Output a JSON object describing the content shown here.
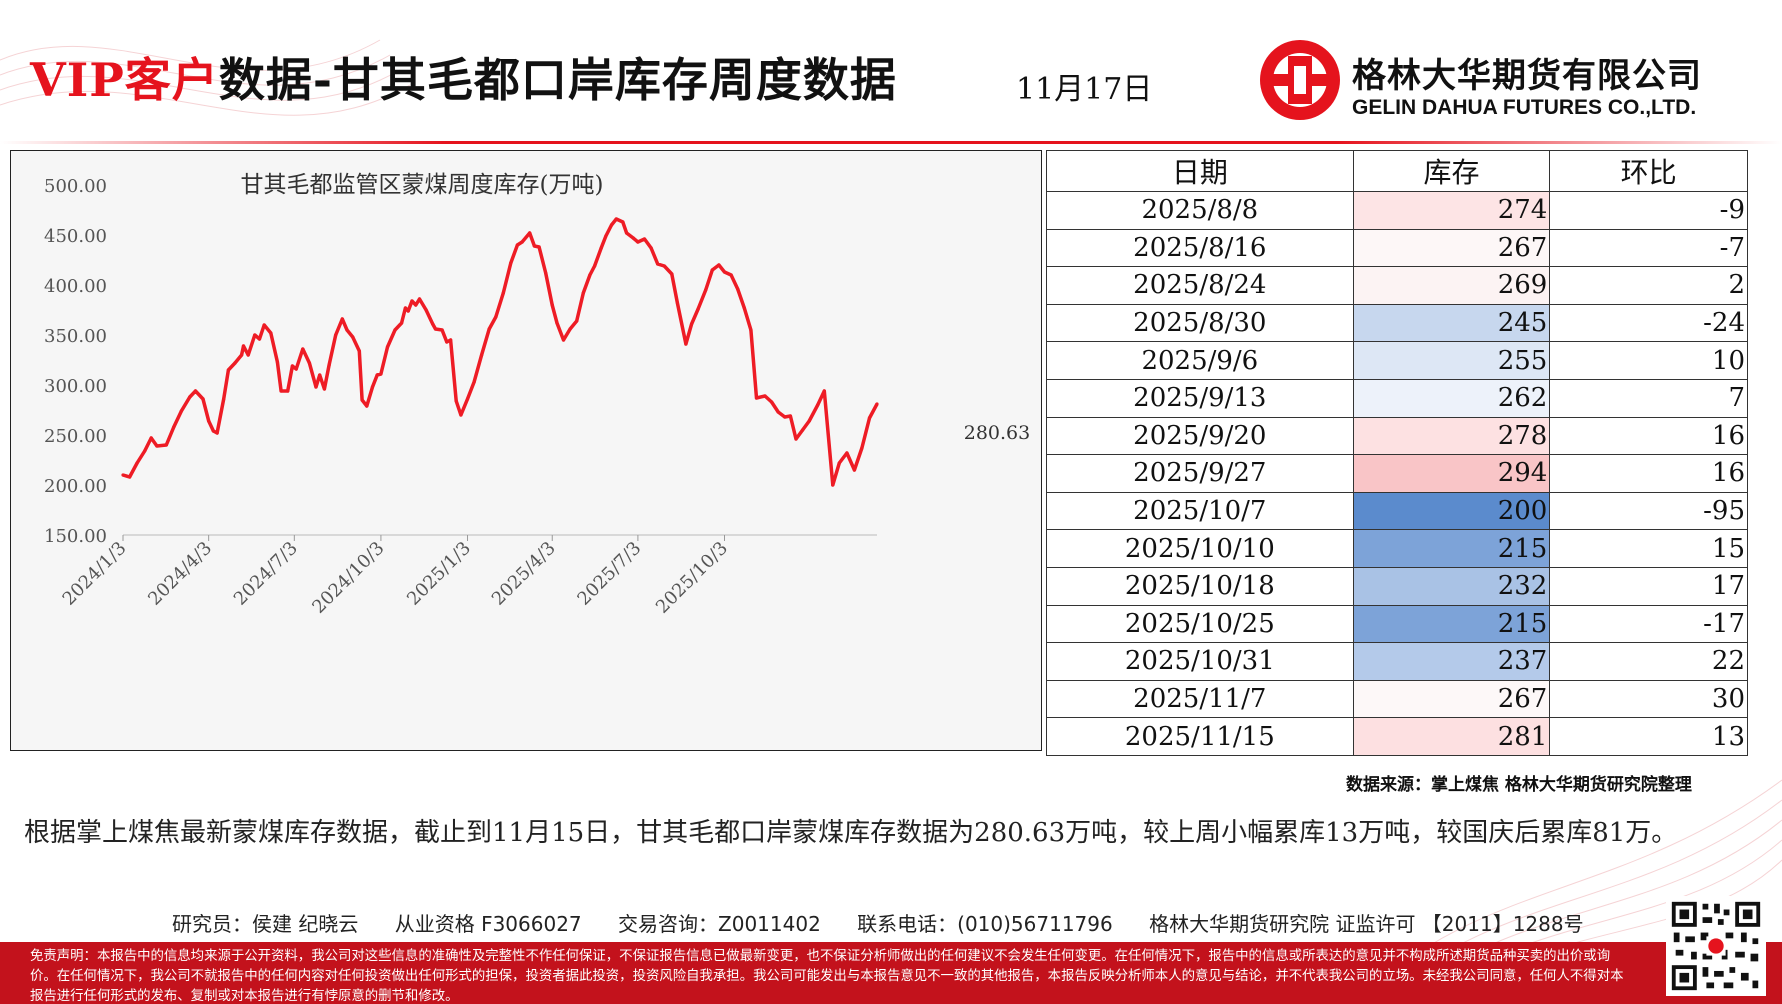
{
  "header": {
    "title_vip": "VIP客户",
    "title_main": "数据-甘其毛都口岸库存周度数据",
    "date": "11月17日",
    "company_cn": "格林大华期货有限公司",
    "company_en": "GELIN DAHUA FUTURES CO.,LTD."
  },
  "colors": {
    "brand_red": "#e5131d",
    "line_red": "#ee1c25",
    "footer_red": "#c3121c"
  },
  "chart_data": {
    "type": "line",
    "title": "甘其毛都监管区蒙煤周度库存(万吨)",
    "ylim": [
      150,
      500
    ],
    "yticks": [
      "150.00",
      "200.00",
      "250.00",
      "300.00",
      "350.00",
      "400.00",
      "450.00",
      "500.00"
    ],
    "xticks": [
      "2024/1/3",
      "2024/4/3",
      "2024/7/3",
      "2024/10/3",
      "2025/1/3",
      "2025/4/3",
      "2025/7/3",
      "2025/10/3"
    ],
    "last_label": "280.63",
    "grid": false,
    "series": [
      {
        "points": [
          [
            "2024-01-03",
            210
          ],
          [
            "2024-01-10",
            208
          ],
          [
            "2024-01-18",
            222
          ],
          [
            "2024-01-26",
            234
          ],
          [
            "2024-02-02",
            247
          ],
          [
            "2024-02-08",
            239
          ],
          [
            "2024-02-18",
            240
          ],
          [
            "2024-02-26",
            258
          ],
          [
            "2024-03-05",
            274
          ],
          [
            "2024-03-14",
            288
          ],
          [
            "2024-03-20",
            294
          ],
          [
            "2024-03-28",
            286
          ],
          [
            "2024-04-03",
            264
          ],
          [
            "2024-04-08",
            254
          ],
          [
            "2024-04-12",
            252
          ],
          [
            "2024-04-19",
            286
          ],
          [
            "2024-04-24",
            315
          ],
          [
            "2024-05-01",
            322
          ],
          [
            "2024-05-08",
            330
          ],
          [
            "2024-05-10",
            339
          ],
          [
            "2024-05-15",
            330
          ],
          [
            "2024-05-22",
            350
          ],
          [
            "2024-05-27",
            346
          ],
          [
            "2024-06-01",
            360
          ],
          [
            "2024-06-08",
            352
          ],
          [
            "2024-06-15",
            323
          ],
          [
            "2024-06-19",
            294
          ],
          [
            "2024-06-26",
            294
          ],
          [
            "2024-07-01",
            319
          ],
          [
            "2024-07-05",
            316
          ],
          [
            "2024-07-12",
            336
          ],
          [
            "2024-07-19",
            322
          ],
          [
            "2024-07-26",
            298
          ],
          [
            "2024-07-30",
            310
          ],
          [
            "2024-08-04",
            296
          ],
          [
            "2024-08-09",
            320
          ],
          [
            "2024-08-16",
            350
          ],
          [
            "2024-08-23",
            366
          ],
          [
            "2024-08-28",
            355
          ],
          [
            "2024-09-03",
            348
          ],
          [
            "2024-09-10",
            334
          ],
          [
            "2024-09-13",
            285
          ],
          [
            "2024-09-18",
            279
          ],
          [
            "2024-09-24",
            298
          ],
          [
            "2024-09-29",
            310
          ],
          [
            "2024-10-03",
            311
          ],
          [
            "2024-10-10",
            338
          ],
          [
            "2024-10-18",
            355
          ],
          [
            "2024-10-25",
            362
          ],
          [
            "2024-10-29",
            377
          ],
          [
            "2024-11-01",
            374
          ],
          [
            "2024-11-05",
            384
          ],
          [
            "2024-11-09",
            380
          ],
          [
            "2024-11-13",
            386
          ],
          [
            "2024-11-20",
            375
          ],
          [
            "2024-11-27",
            361
          ],
          [
            "2024-11-30",
            356
          ],
          [
            "2024-12-07",
            355
          ],
          [
            "2024-12-12",
            343
          ],
          [
            "2024-12-16",
            345
          ],
          [
            "2024-12-22",
            284
          ],
          [
            "2024-12-27",
            270
          ],
          [
            "2025-01-03",
            286
          ],
          [
            "2025-01-10",
            303
          ],
          [
            "2025-01-18",
            330
          ],
          [
            "2025-01-26",
            356
          ],
          [
            "2025-02-02",
            368
          ],
          [
            "2025-02-10",
            392
          ],
          [
            "2025-02-18",
            422
          ],
          [
            "2025-02-25",
            440
          ],
          [
            "2025-03-02",
            443
          ],
          [
            "2025-03-10",
            452
          ],
          [
            "2025-03-15",
            439
          ],
          [
            "2025-03-20",
            438
          ],
          [
            "2025-03-27",
            412
          ],
          [
            "2025-04-03",
            380
          ],
          [
            "2025-04-08",
            362
          ],
          [
            "2025-04-15",
            345
          ],
          [
            "2025-04-22",
            356
          ],
          [
            "2025-04-29",
            364
          ],
          [
            "2025-05-06",
            392
          ],
          [
            "2025-05-13",
            410
          ],
          [
            "2025-05-18",
            419
          ],
          [
            "2025-05-25",
            437
          ],
          [
            "2025-05-30",
            449
          ],
          [
            "2025-06-05",
            460
          ],
          [
            "2025-06-10",
            466
          ],
          [
            "2025-06-17",
            463
          ],
          [
            "2025-06-21",
            452
          ],
          [
            "2025-06-28",
            447
          ],
          [
            "2025-07-03",
            443
          ],
          [
            "2025-07-10",
            446
          ],
          [
            "2025-07-17",
            437
          ],
          [
            "2025-07-24",
            421
          ],
          [
            "2025-07-31",
            419
          ],
          [
            "2025-08-08",
            411
          ],
          [
            "2025-08-14",
            382
          ],
          [
            "2025-08-23",
            341
          ],
          [
            "2025-08-29",
            361
          ],
          [
            "2025-09-05",
            376
          ],
          [
            "2025-09-13",
            395
          ],
          [
            "2025-09-20",
            415
          ],
          [
            "2025-09-27",
            420
          ],
          [
            "2025-10-03",
            413
          ],
          [
            "2025-10-10",
            410
          ],
          [
            "2025-10-17",
            396
          ],
          [
            "2025-10-24",
            377
          ],
          [
            "2025-10-31",
            355
          ],
          [
            "2025-11-06",
            287
          ],
          [
            "2025-11-15",
            289
          ],
          [
            "2025-11-22",
            283
          ],
          [
            "2025-11-29",
            273
          ],
          [
            "2025-12-06",
            268
          ],
          [
            "2025-12-12",
            269
          ],
          [
            "2025-12-18",
            246
          ],
          [
            "2025-12-25",
            255
          ],
          [
            "2026-01-01",
            264
          ],
          [
            "2026-01-10",
            280
          ],
          [
            "2026-01-17",
            294
          ],
          [
            "2026-01-26",
            200
          ],
          [
            "2026-02-02",
            222
          ],
          [
            "2026-02-10",
            232
          ],
          [
            "2026-02-18",
            215
          ],
          [
            "2026-02-26",
            237
          ],
          [
            "2026-03-06",
            267
          ],
          [
            "2026-03-14",
            281
          ]
        ]
      }
    ]
  },
  "table": {
    "headers": [
      "日期",
      "库存",
      "环比"
    ],
    "rows": [
      {
        "date": "2025/8/8",
        "stock": "274",
        "chg": "-9",
        "bg": "#fde4e5"
      },
      {
        "date": "2025/8/16",
        "stock": "267",
        "chg": "-7",
        "bg": "#fdf7f7"
      },
      {
        "date": "2025/8/24",
        "stock": "269",
        "chg": "2",
        "bg": "#fcf3f3"
      },
      {
        "date": "2025/8/30",
        "stock": "245",
        "chg": "-24",
        "bg": "#c7d7ee"
      },
      {
        "date": "2025/9/6",
        "stock": "255",
        "chg": "10",
        "bg": "#dde7f5"
      },
      {
        "date": "2025/9/13",
        "stock": "262",
        "chg": "7",
        "bg": "#edf2fa"
      },
      {
        "date": "2025/9/20",
        "stock": "278",
        "chg": "16",
        "bg": "#fde1e2"
      },
      {
        "date": "2025/9/27",
        "stock": "294",
        "chg": "16",
        "bg": "#f9c5c7"
      },
      {
        "date": "2025/10/7",
        "stock": "200",
        "chg": "-95",
        "bg": "#5b8bcd"
      },
      {
        "date": "2025/10/10",
        "stock": "215",
        "chg": "15",
        "bg": "#7da3d8"
      },
      {
        "date": "2025/10/18",
        "stock": "232",
        "chg": "17",
        "bg": "#a9c2e5"
      },
      {
        "date": "2025/10/25",
        "stock": "215",
        "chg": "-17",
        "bg": "#7da3d8"
      },
      {
        "date": "2025/10/31",
        "stock": "237",
        "chg": "22",
        "bg": "#b4caea"
      },
      {
        "date": "2025/11/7",
        "stock": "267",
        "chg": "30",
        "bg": "#fdf8f8"
      },
      {
        "date": "2025/11/15",
        "stock": "281",
        "chg": "13",
        "bg": "#fde0e1"
      }
    ]
  },
  "source": "数据来源：掌上煤焦  格林大华期货研究院整理",
  "summary": "根据掌上煤焦最新蒙煤库存数据，截止到11月15日，甘其毛都口岸蒙煤库存数据为280.63万吨，较上周小幅累库13万吨，较国庆后累库81万。",
  "footer": {
    "researcher": "研究员：侯建 纪晓云",
    "license": "从业资格 F3066027",
    "consult": "交易咨询：Z0011402",
    "phone": "联系电话：(010)56711796",
    "institute": "格林大华期货研究院  证监许可 【2011】1288号"
  },
  "disclaimer": "免责声明：本报告中的信息均来源于公开资料，我公司对这些信息的准确性及完整性不作任何保证，不保证报告信息已做最新变更，也不保证分析师做出的任何建议不会发生任何变更。在任何情况下，报告中的信息或所表达的意见并不构成所述期货品种买卖的出价或询价。在任何情况下，我公司不就报告中的任何内容对任何投资做出任何形式的担保，投资者据此投资，投资风险自我承担。我公司可能发出与本报告意见不一致的其他报告，本报告反映分析师本人的意见与结论，并不代表我公司的立场。未经我公司同意，任何人不得对本报告进行任何形式的发布、复制或对本报告进行有悖原意的删节和修改。"
}
